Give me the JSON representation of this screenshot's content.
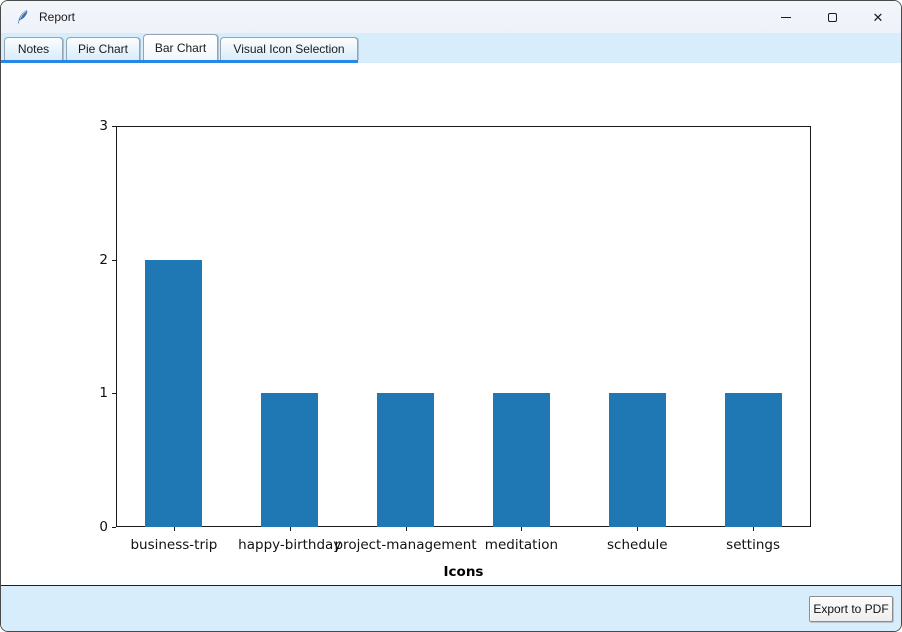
{
  "window": {
    "title": "Report",
    "controls": {
      "minimize": "minimize",
      "maximize": "maximize",
      "close": "✕"
    }
  },
  "tabs": [
    {
      "label": "Notes",
      "selected": false
    },
    {
      "label": "Pie Chart",
      "selected": false
    },
    {
      "label": "Bar Chart",
      "selected": true
    },
    {
      "label": "Visual Icon Selection",
      "selected": false
    }
  ],
  "chart_data": {
    "type": "bar",
    "categories": [
      "business-trip",
      "happy-birthday",
      "project-management",
      "meditation",
      "schedule",
      "settings"
    ],
    "values": [
      2,
      1,
      1,
      1,
      1,
      1
    ],
    "title": "",
    "xlabel": "Icons",
    "ylabel": "",
    "ylim": [
      0,
      3
    ],
    "yticks": [
      0,
      1,
      2,
      3
    ],
    "bar_color": "#1f77b4",
    "grid": false,
    "legend": null
  },
  "footer": {
    "export_button": "Export to PDF"
  },
  "colors": {
    "accent_underline": "#2787e4",
    "tab_strip": "#d8edfb",
    "title_bar": "#eff3fa",
    "bar_fill": "#1f77b4"
  }
}
